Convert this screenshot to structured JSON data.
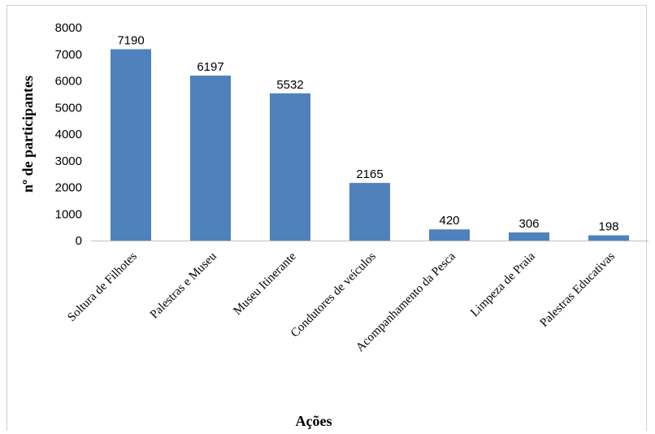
{
  "chart_data": {
    "type": "bar",
    "categories": [
      "Soltura de Filhotes",
      "Palestras e Museu",
      "Museu Itinerante",
      "Condutores de veículos",
      "Acompanhamento da Pesca",
      "Limpeza de Praia",
      "Palestras Educativas"
    ],
    "values": [
      7190,
      6197,
      5532,
      2165,
      420,
      306,
      198
    ],
    "xlabel": "Ações",
    "ylabel": "nº de participantes",
    "ylim": [
      0,
      8000
    ],
    "yticks": [
      0,
      1000,
      2000,
      3000,
      4000,
      5000,
      6000,
      7000,
      8000
    ],
    "grid": false,
    "legend": "none",
    "bar_color": "#4f81bd"
  }
}
